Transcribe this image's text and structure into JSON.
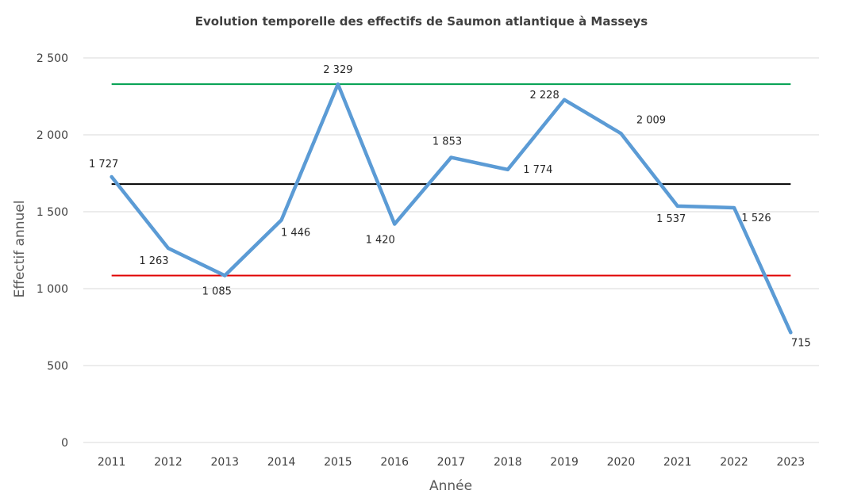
{
  "chart_data": {
    "type": "line",
    "title": "Evolution temporelle des effectifs de Saumon atlantique à Masseys",
    "xlabel": "Année",
    "ylabel": "Effectif annuel",
    "ylim": [
      0,
      2500
    ],
    "yticks": [
      0,
      500,
      1000,
      1500,
      2000,
      2500
    ],
    "ytick_labels": [
      "0",
      "500",
      "1 000",
      "1 500",
      "2 000",
      "2 500"
    ],
    "grid": true,
    "categories": [
      "2011",
      "2012",
      "2013",
      "2014",
      "2015",
      "2016",
      "2017",
      "2018",
      "2019",
      "2020",
      "2021",
      "2022",
      "2023"
    ],
    "series": [
      {
        "values": [
          1727,
          1263,
          1085,
          1446,
          2329,
          1420,
          1853,
          1774,
          2228,
          2009,
          1537,
          1526,
          715
        ],
        "labels": [
          "1 727",
          "1 263",
          "1 085",
          "1 446",
          "2 329",
          "1 420",
          "1 853",
          "1 774",
          "2 228",
          "2 009",
          "1 537",
          "1 526",
          "715"
        ],
        "color": "#5b9bd5"
      }
    ],
    "reference_lines": [
      {
        "value": 2329,
        "color": "#00a050"
      },
      {
        "value": 1680,
        "color": "#000000"
      },
      {
        "value": 1085,
        "color": "#e00000"
      }
    ]
  }
}
